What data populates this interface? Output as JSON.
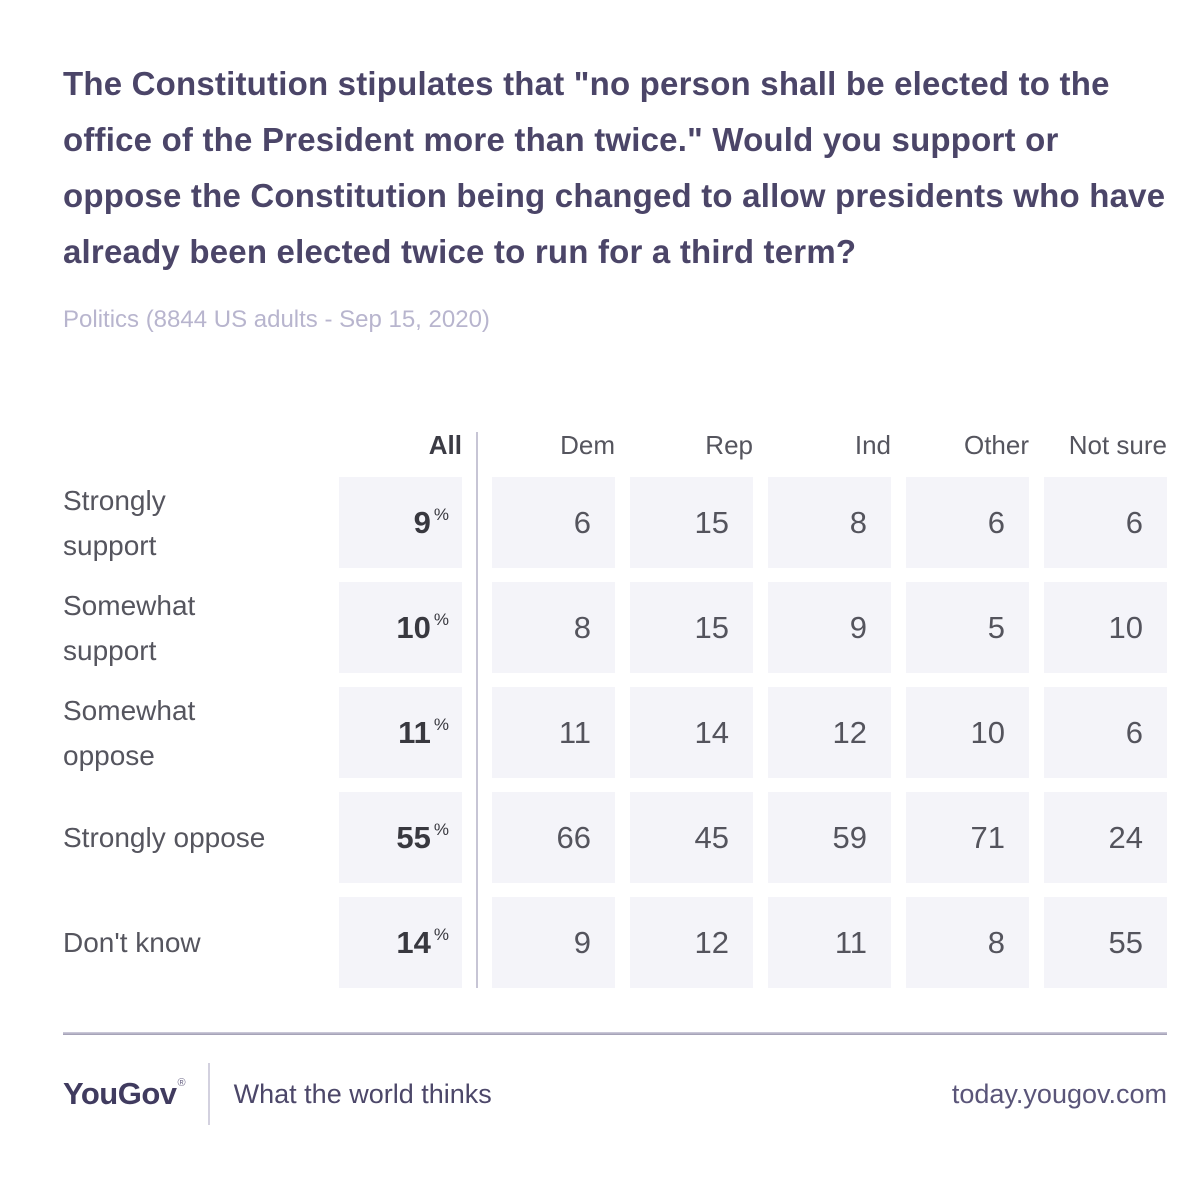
{
  "question": {
    "title": "The Constitution stipulates that \"no person shall be elected to the office of the President more than twice.\" Would you support or oppose the Constitution being changed to allow presidents who have already been elected twice to run for a third term?",
    "meta": "Politics (8844 US adults - Sep 15, 2020)"
  },
  "table": {
    "percent_sign": "%",
    "columns": {
      "all": "All",
      "others": [
        "Dem",
        "Rep",
        "Ind",
        "Other",
        "Not sure"
      ]
    },
    "rows": [
      {
        "label": "Strongly\nsupport",
        "all": "9",
        "values": [
          "6",
          "15",
          "8",
          "6",
          "6"
        ]
      },
      {
        "label": "Somewhat\nsupport",
        "all": "10",
        "values": [
          "8",
          "15",
          "9",
          "5",
          "10"
        ]
      },
      {
        "label": "Somewhat\noppose",
        "all": "11",
        "values": [
          "11",
          "14",
          "12",
          "10",
          "6"
        ]
      },
      {
        "label": "Strongly oppose",
        "all": "55",
        "values": [
          "66",
          "45",
          "59",
          "71",
          "24"
        ]
      },
      {
        "label": "Don't know",
        "all": "14",
        "values": [
          "9",
          "12",
          "11",
          "8",
          "55"
        ]
      }
    ]
  },
  "chart_data": {
    "type": "table",
    "title": "The Constitution stipulates that \"no person shall be elected to the office of the President more than twice.\" Would you support or oppose the Constitution being changed to allow presidents who have already been elected twice to run for a third term?",
    "subtitle": "Politics (8844 US adults - Sep 15, 2020)",
    "unit": "% of respondents",
    "columns": [
      "All",
      "Dem",
      "Rep",
      "Ind",
      "Other",
      "Not sure"
    ],
    "rows": [
      {
        "label": "Strongly support",
        "values": [
          9,
          6,
          15,
          8,
          6,
          6
        ]
      },
      {
        "label": "Somewhat support",
        "values": [
          10,
          8,
          15,
          9,
          5,
          10
        ]
      },
      {
        "label": "Somewhat oppose",
        "values": [
          11,
          11,
          14,
          12,
          10,
          6
        ]
      },
      {
        "label": "Strongly oppose",
        "values": [
          55,
          66,
          45,
          59,
          71,
          24
        ]
      },
      {
        "label": "Don't know",
        "values": [
          14,
          9,
          12,
          11,
          8,
          55
        ]
      }
    ]
  },
  "footer": {
    "logo": "YouGov",
    "registered": "®",
    "tagline": "What the world thinks",
    "url": "today.yougov.com"
  },
  "colors": {
    "title": "#4b4568",
    "subtitle": "#b8b5ce",
    "cell_background": "#f4f4f9",
    "value_text": "#54545d",
    "value_bold": "#38383f",
    "divider": "#c7c5d5",
    "footer_text": "#4c4769"
  }
}
